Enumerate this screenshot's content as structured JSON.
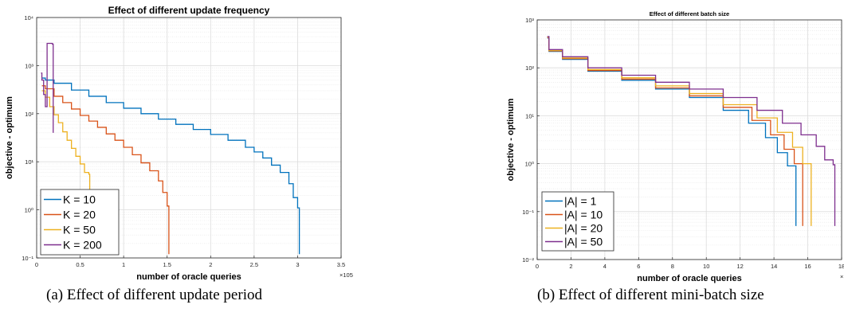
{
  "captions": {
    "a": "(a) Effect of different update period",
    "b": "(b) Effect of different mini-batch size"
  },
  "chart_data": [
    {
      "type": "line",
      "title": "Effect of different update frequency",
      "xlabel": "number of oracle queries",
      "ylabel": "objective - optimum",
      "x_exponent": "×10^5",
      "xlim": [
        0,
        3.5
      ],
      "ylim": [
        0.1,
        10000
      ],
      "yscale": "log",
      "grid": true,
      "legend_position": "bottom-left",
      "xticks": [
        0,
        0.5,
        1,
        1.5,
        2,
        2.5,
        3,
        3.5
      ],
      "xtick_labels": [
        "0",
        "0.5",
        "1",
        "1.5",
        "2",
        "2.5",
        "3",
        "3.5"
      ],
      "yticks": [
        0.1,
        1,
        10,
        100,
        1000,
        10000
      ],
      "ytick_labels": [
        "10⁻¹",
        "10⁰",
        "10¹",
        "10²",
        "10³",
        "10⁴"
      ],
      "series": [
        {
          "name": "K = 10",
          "color": "#0072BD",
          "x": [
            0.06,
            0.1,
            0.2,
            0.4,
            0.6,
            0.8,
            1.0,
            1.2,
            1.4,
            1.6,
            1.8,
            2.0,
            2.2,
            2.4,
            2.5,
            2.6,
            2.7,
            2.8,
            2.9,
            2.95,
            3.0,
            3.02
          ],
          "y": [
            550,
            500,
            430,
            310,
            230,
            170,
            130,
            100,
            77,
            60,
            47,
            37,
            28,
            20,
            16,
            12,
            8.5,
            6,
            3.5,
            1.8,
            1.1,
            0.12
          ]
        },
        {
          "name": "K = 20",
          "color": "#D95319",
          "x": [
            0.06,
            0.1,
            0.2,
            0.3,
            0.4,
            0.5,
            0.6,
            0.7,
            0.8,
            0.9,
            1.0,
            1.1,
            1.2,
            1.3,
            1.4,
            1.45,
            1.5,
            1.52
          ],
          "y": [
            380,
            330,
            230,
            170,
            125,
            92,
            70,
            52,
            38,
            28,
            20,
            14,
            9.5,
            6.5,
            4,
            2.3,
            1.2,
            0.12
          ]
        },
        {
          "name": "K = 50",
          "color": "#EDB120",
          "x": [
            0.06,
            0.1,
            0.15,
            0.2,
            0.25,
            0.3,
            0.35,
            0.4,
            0.45,
            0.5,
            0.55,
            0.6,
            0.61
          ],
          "y": [
            300,
            220,
            140,
            95,
            65,
            42,
            28,
            19,
            13,
            9,
            6,
            5.5,
            0.12
          ]
        },
        {
          "name": "K = 200",
          "color": "#7E2F8E",
          "x": [
            0.05,
            0.06,
            0.08,
            0.1,
            0.12,
            0.15,
            0.18,
            0.19
          ],
          "y": [
            700,
            500,
            250,
            140,
            2900,
            2900,
            2800,
            40
          ]
        }
      ]
    },
    {
      "type": "line",
      "title": "Effect of different batch size",
      "xlabel": "number of oracle queries",
      "ylabel": "objective - optimum",
      "x_exponent": "×10^4",
      "xlim": [
        0,
        18
      ],
      "ylim": [
        0.01,
        1000
      ],
      "yscale": "log",
      "grid": true,
      "legend_position": "bottom-left",
      "xticks": [
        0,
        2,
        4,
        6,
        8,
        10,
        12,
        14,
        16,
        18
      ],
      "xtick_labels": [
        "0",
        "2",
        "4",
        "6",
        "8",
        "10",
        "12",
        "14",
        "16",
        "18"
      ],
      "yticks": [
        0.01,
        0.1,
        1,
        10,
        100,
        1000
      ],
      "ytick_labels": [
        "10⁻²",
        "10⁻¹",
        "10⁰",
        "10¹",
        "10²",
        "10³"
      ],
      "series": [
        {
          "name": "|A| = 1",
          "color": "#0072BD",
          "x": [
            0.6,
            0.7,
            1.5,
            3,
            5,
            7,
            9,
            11,
            12.5,
            13.5,
            14.2,
            14.8,
            15.2,
            15.3
          ],
          "y": [
            420,
            220,
            150,
            85,
            55,
            36,
            24,
            13,
            7,
            3.5,
            1.7,
            0.9,
            0.9,
            0.05
          ]
        },
        {
          "name": "|A| = 10",
          "color": "#D95319",
          "x": [
            0.6,
            0.7,
            1.5,
            3,
            5,
            7,
            9,
            11,
            12.7,
            13.8,
            14.6,
            15.2,
            15.6,
            15.7
          ],
          "y": [
            430,
            225,
            155,
            88,
            58,
            38,
            26,
            15,
            8,
            4,
            2,
            1,
            1,
            0.05
          ]
        },
        {
          "name": "|A| = 20",
          "color": "#EDB120",
          "x": [
            0.6,
            0.7,
            1.5,
            3,
            5,
            7,
            9,
            11,
            13,
            14.2,
            15.1,
            15.7,
            16.1,
            16.2
          ],
          "y": [
            440,
            230,
            160,
            92,
            62,
            42,
            29,
            17,
            9,
            4.5,
            2.2,
            1,
            1,
            0.05
          ]
        },
        {
          "name": "|A| = 50",
          "color": "#7E2F8E",
          "x": [
            0.6,
            0.7,
            1.5,
            3,
            5,
            7,
            9,
            11,
            13,
            14.5,
            15.6,
            16.5,
            17,
            17.5,
            17.6
          ],
          "y": [
            450,
            240,
            170,
            100,
            70,
            50,
            36,
            24,
            13,
            7,
            4,
            2.3,
            1.2,
            0.95,
            0.05
          ]
        }
      ]
    }
  ]
}
